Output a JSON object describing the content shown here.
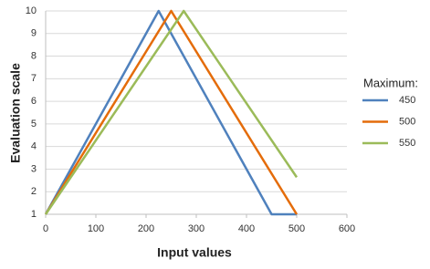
{
  "chart_data": {
    "type": "line",
    "x_label": "Input values",
    "y_label": "Evaluation scale",
    "legend_title": "Maximum:",
    "legend_position": "right",
    "grid": true,
    "xlim": [
      0,
      600
    ],
    "xticks": [
      0,
      100,
      200,
      300,
      400,
      500,
      600
    ],
    "ylim": [
      1,
      10
    ],
    "yticks": [
      1,
      2,
      3,
      4,
      5,
      6,
      7,
      8,
      9,
      10
    ],
    "series": [
      {
        "name": "450",
        "color": "#4f81bd",
        "x": [
          0,
          225,
          450,
          500
        ],
        "values": [
          1,
          10,
          1,
          1
        ]
      },
      {
        "name": "500",
        "color": "#e46c0a",
        "x": [
          0,
          250,
          500
        ],
        "values": [
          1,
          10,
          1
        ]
      },
      {
        "name": "550",
        "color": "#9bbb59",
        "x": [
          0,
          275,
          500
        ],
        "values": [
          1,
          10,
          2.64
        ]
      }
    ]
  }
}
